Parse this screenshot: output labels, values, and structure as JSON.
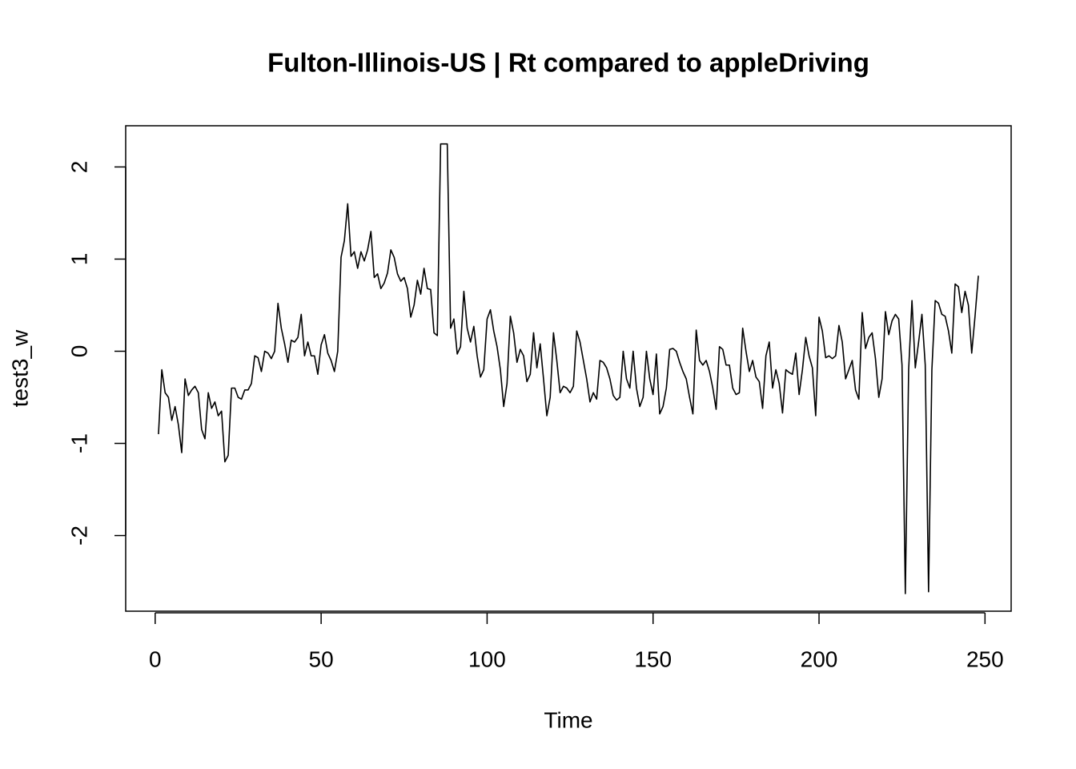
{
  "chart_data": {
    "type": "line",
    "title": "Fulton-Illinois-US | Rt compared to appleDriving",
    "x_label": "Time",
    "y_label": "test3_w",
    "color": "#000000",
    "x": [
      1,
      2,
      3,
      4,
      5,
      6,
      7,
      8,
      9,
      10,
      11,
      12,
      13,
      14,
      15,
      16,
      17,
      18,
      19,
      20,
      21,
      22,
      23,
      24,
      25,
      26,
      27,
      28,
      29,
      30,
      31,
      32,
      33,
      34,
      35,
      36,
      37,
      38,
      39,
      40,
      41,
      42,
      43,
      44,
      45,
      46,
      47,
      48,
      49,
      50,
      51,
      52,
      53,
      54,
      55,
      56,
      57,
      58,
      59,
      60,
      61,
      62,
      63,
      64,
      65,
      66,
      67,
      68,
      69,
      70,
      71,
      72,
      73,
      74,
      75,
      76,
      77,
      78,
      79,
      80,
      81,
      82,
      83,
      84,
      85,
      86,
      87,
      88,
      89,
      90,
      91,
      92,
      93,
      94,
      95,
      96,
      97,
      98,
      99,
      100,
      101,
      102,
      103,
      104,
      105,
      106,
      107,
      108,
      109,
      110,
      111,
      112,
      113,
      114,
      115,
      116,
      117,
      118,
      119,
      120,
      121,
      122,
      123,
      124,
      125,
      126,
      127,
      128,
      129,
      130,
      131,
      132,
      133,
      134,
      135,
      136,
      137,
      138,
      139,
      140,
      141,
      142,
      143,
      144,
      145,
      146,
      147,
      148,
      149,
      150,
      151,
      152,
      153,
      154,
      155,
      156,
      157,
      158,
      159,
      160,
      161,
      162,
      163,
      164,
      165,
      166,
      167,
      168,
      169,
      170,
      171,
      172,
      173,
      174,
      175,
      176,
      177,
      178,
      179,
      180,
      181,
      182,
      183,
      184,
      185,
      186,
      187,
      188,
      189,
      190,
      191,
      192,
      193,
      194,
      195,
      196,
      197,
      198,
      199,
      200,
      201,
      202,
      203,
      204,
      205,
      206,
      207,
      208,
      209,
      210,
      211,
      212,
      213,
      214,
      215,
      216,
      217,
      218,
      219,
      220,
      221,
      222,
      223,
      224,
      225,
      226,
      227,
      228,
      229,
      230,
      231,
      232,
      233,
      234,
      235,
      236,
      237,
      238,
      239,
      240,
      241,
      242,
      243,
      244,
      245,
      246,
      247,
      248
    ],
    "values": [
      -0.9,
      -0.2,
      -0.45,
      -0.5,
      -0.75,
      -0.6,
      -0.8,
      -1.1,
      -0.3,
      -0.48,
      -0.42,
      -0.38,
      -0.45,
      -0.85,
      -0.95,
      -0.45,
      -0.62,
      -0.55,
      -0.7,
      -0.65,
      -1.2,
      -1.13,
      -0.4,
      -0.4,
      -0.5,
      -0.52,
      -0.42,
      -0.42,
      -0.35,
      -0.05,
      -0.07,
      -0.22,
      0.0,
      -0.02,
      -0.08,
      0.0,
      0.52,
      0.25,
      0.08,
      -0.12,
      0.12,
      0.1,
      0.15,
      0.4,
      -0.05,
      0.1,
      -0.05,
      -0.05,
      -0.25,
      0.07,
      0.18,
      -0.02,
      -0.1,
      -0.22,
      0.0,
      1.02,
      1.2,
      1.6,
      1.03,
      1.08,
      0.9,
      1.08,
      0.98,
      1.1,
      1.3,
      0.8,
      0.84,
      0.68,
      0.74,
      0.85,
      1.1,
      1.02,
      0.84,
      0.76,
      0.8,
      0.68,
      0.37,
      0.5,
      0.77,
      0.62,
      0.9,
      0.68,
      0.67,
      0.2,
      0.17,
      2.25,
      2.25,
      2.25,
      0.25,
      0.35,
      -0.03,
      0.05,
      0.65,
      0.25,
      0.1,
      0.27,
      -0.05,
      -0.28,
      -0.2,
      0.35,
      0.45,
      0.22,
      0.05,
      -0.2,
      -0.6,
      -0.35,
      0.38,
      0.2,
      -0.12,
      0.02,
      -0.05,
      -0.33,
      -0.25,
      0.2,
      -0.18,
      0.08,
      -0.3,
      -0.7,
      -0.5,
      0.2,
      -0.1,
      -0.45,
      -0.38,
      -0.4,
      -0.45,
      -0.38,
      0.22,
      0.1,
      -0.1,
      -0.3,
      -0.55,
      -0.45,
      -0.52,
      -0.1,
      -0.12,
      -0.18,
      -0.3,
      -0.48,
      -0.53,
      -0.5,
      0.0,
      -0.3,
      -0.4,
      0.0,
      -0.4,
      -0.6,
      -0.5,
      0.0,
      -0.3,
      -0.47,
      -0.03,
      -0.68,
      -0.6,
      -0.4,
      0.02,
      0.03,
      0.0,
      -0.12,
      -0.22,
      -0.3,
      -0.5,
      -0.68,
      0.23,
      -0.1,
      -0.15,
      -0.1,
      -0.22,
      -0.4,
      -0.63,
      0.05,
      0.02,
      -0.15,
      -0.15,
      -0.4,
      -0.47,
      -0.45,
      0.25,
      0.0,
      -0.22,
      -0.1,
      -0.28,
      -0.33,
      -0.62,
      -0.05,
      0.1,
      -0.4,
      -0.2,
      -0.35,
      -0.67,
      -0.2,
      -0.23,
      -0.25,
      -0.02,
      -0.47,
      -0.2,
      0.15,
      -0.05,
      -0.18,
      -0.7,
      0.37,
      0.22,
      -0.07,
      -0.05,
      -0.08,
      -0.05,
      0.28,
      0.1,
      -0.3,
      -0.2,
      -0.1,
      -0.42,
      -0.52,
      0.42,
      0.03,
      0.15,
      0.2,
      -0.08,
      -0.5,
      -0.3,
      0.43,
      0.18,
      0.33,
      0.4,
      0.35,
      -0.15,
      -2.63,
      -0.2,
      0.55,
      -0.18,
      0.1,
      0.4,
      -0.15,
      -2.61,
      -0.2,
      0.55,
      0.52,
      0.4,
      0.38,
      0.22,
      -0.02,
      0.73,
      0.7,
      0.42,
      0.65,
      0.5,
      -0.02,
      0.38,
      0.82
    ],
    "xlim": [
      -8.88,
      257.88
    ],
    "xticks": [
      0,
      50,
      100,
      150,
      200,
      250
    ],
    "ylim": [
      -2.821,
      2.447
    ],
    "yticks": [
      -2,
      -1,
      0,
      1,
      2
    ],
    "grid": false
  }
}
